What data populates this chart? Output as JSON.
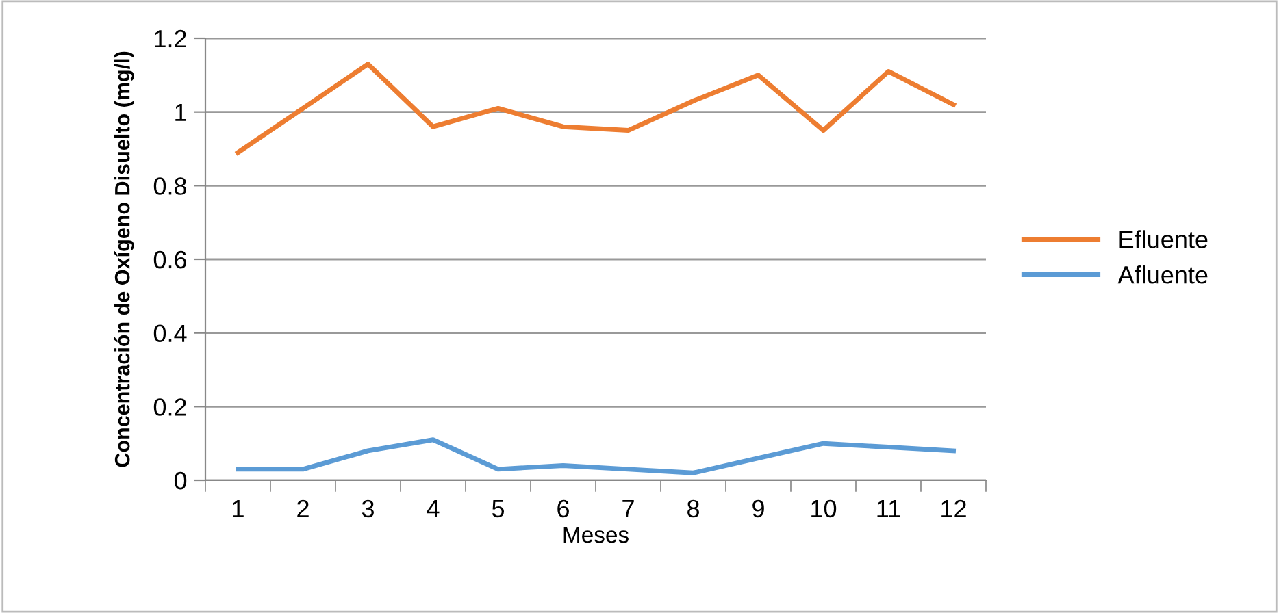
{
  "chart_data": {
    "type": "line",
    "xlabel": "Meses",
    "ylabel": "Concentración de Oxígeno Disuelto (mg/l)",
    "categories": [
      "1",
      "2",
      "3",
      "4",
      "5",
      "6",
      "7",
      "8",
      "9",
      "10",
      "11",
      "12"
    ],
    "series": [
      {
        "name": "Efluente",
        "color": "#ed7d31",
        "values": [
          0.89,
          1.01,
          1.13,
          0.96,
          1.01,
          0.96,
          0.95,
          1.03,
          1.1,
          0.95,
          1.11,
          1.02
        ]
      },
      {
        "name": "Afluente",
        "color": "#5b9bd5",
        "values": [
          0.03,
          0.03,
          0.08,
          0.11,
          0.03,
          0.04,
          0.03,
          0.02,
          0.06,
          0.1,
          0.09,
          0.08
        ]
      }
    ],
    "ylim": [
      0,
      1.2
    ],
    "yticks": [
      0,
      0.2,
      0.4,
      0.6,
      0.8,
      1,
      1.2
    ],
    "grid": "y",
    "legend": "right",
    "marker": "none",
    "line_style": "solid"
  }
}
